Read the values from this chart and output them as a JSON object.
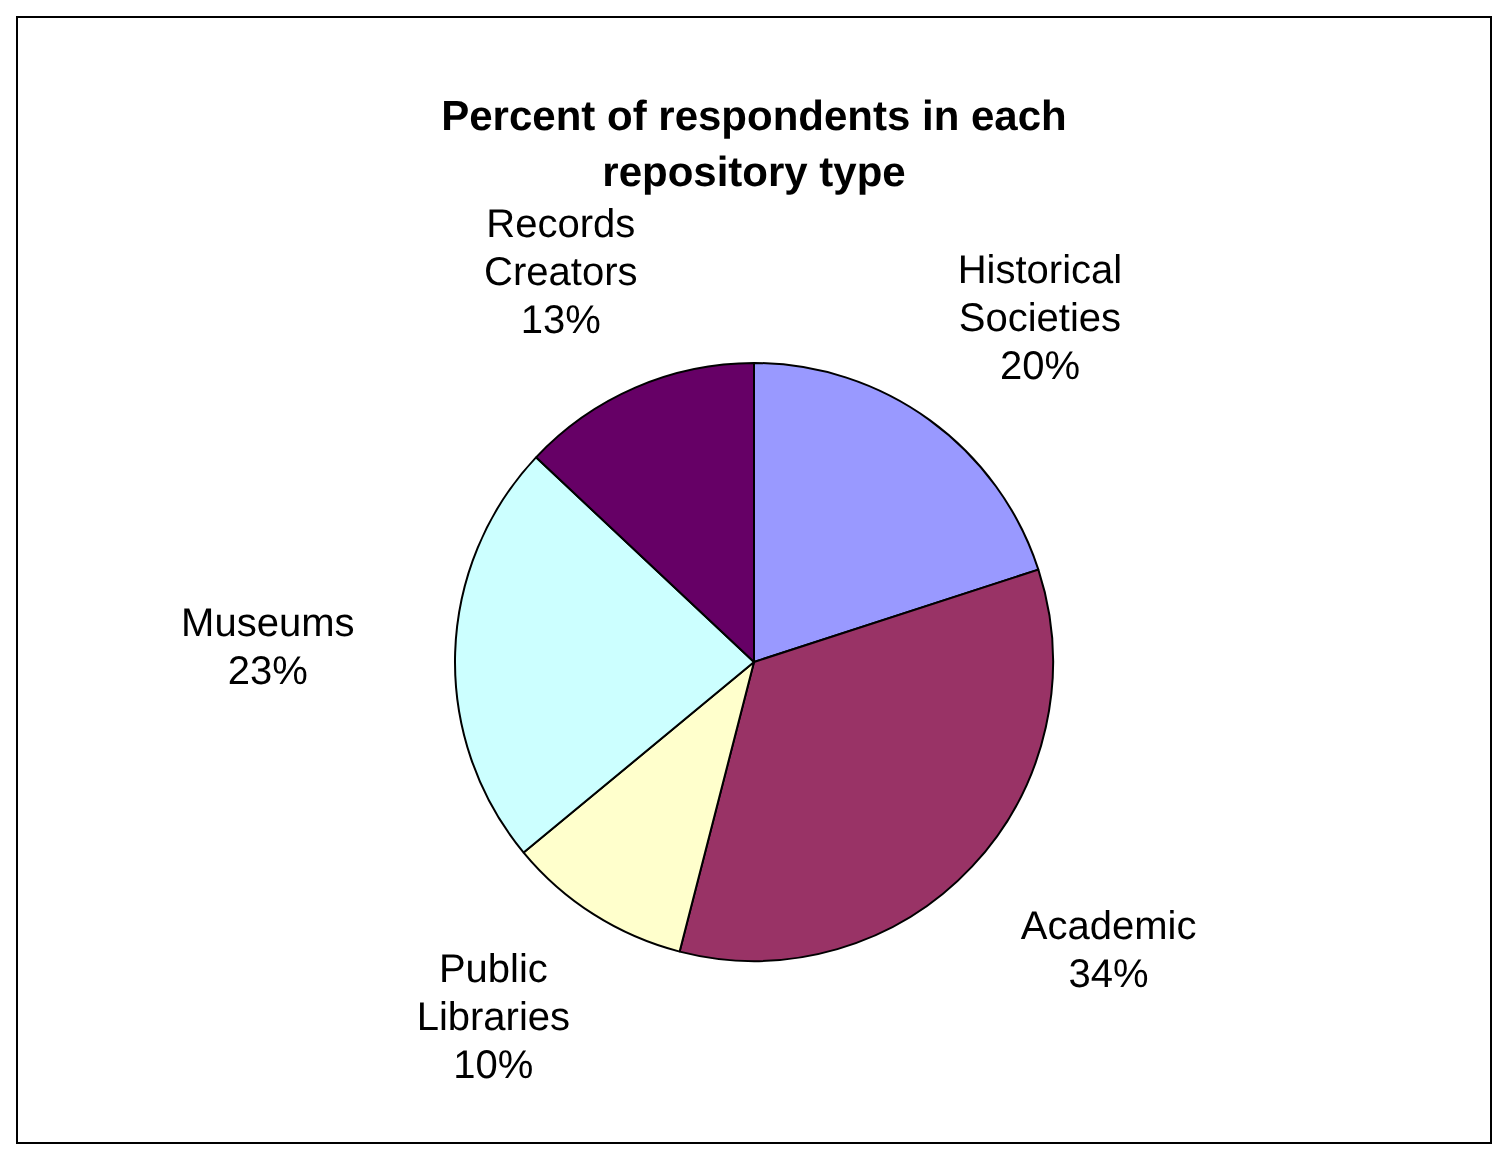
{
  "chart_data": {
    "type": "pie",
    "title": "Percent of respondents in each repository type",
    "categories": [
      "Historical Societies",
      "Academic",
      "Public Libraries",
      "Museums",
      "Records Creators"
    ],
    "values": [
      20,
      34,
      10,
      23,
      13
    ],
    "value_labels": [
      "20%",
      "34%",
      "10%",
      "23%",
      "13%"
    ],
    "colors": [
      "#9999ff",
      "#993366",
      "#ffffcc",
      "#ccffff",
      "#660066"
    ],
    "legend": false
  }
}
